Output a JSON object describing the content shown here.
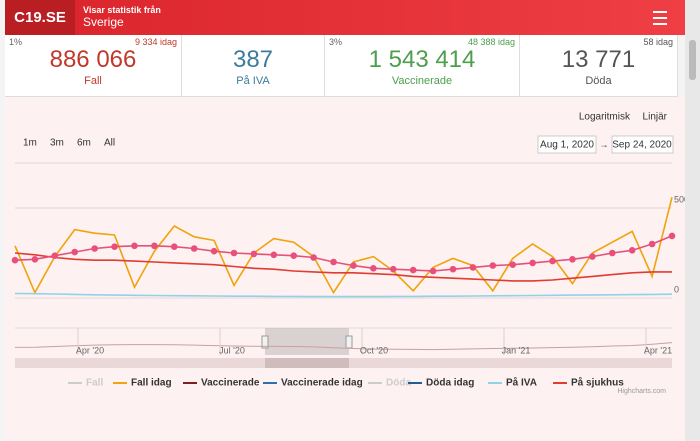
{
  "header": {
    "logo": "C19.SE",
    "subtitle": "Visar statistik från",
    "region": "Sverige"
  },
  "cards": [
    {
      "percent": "1%",
      "today": "9 334 idag",
      "value": "886 066",
      "label": "Fall",
      "color": "#c0392b"
    },
    {
      "value": "387",
      "label": "På IVA",
      "color": "#3b7c9c"
    },
    {
      "percent": "3%",
      "today": "48 388 idag",
      "value": "1 543 414",
      "label": "Vaccinerade",
      "color": "#4d9e4d"
    },
    {
      "today": "58 idag",
      "value": "13 771",
      "label": "Döda",
      "color": "#555555"
    }
  ],
  "controls": {
    "scale_buttons": [
      "Logaritmisk",
      "Linjär"
    ],
    "range_buttons": [
      "1m",
      "3m",
      "6m",
      "All"
    ],
    "date_from": "Aug 1, 2020",
    "date_separator": "→",
    "date_to": "Sep 24, 2020"
  },
  "chart_data": {
    "type": "line",
    "ylim": [
      0,
      750
    ],
    "yticks": [
      0,
      500
    ],
    "grid": true,
    "series": [
      {
        "name": "Fall",
        "color": "#cccccc",
        "visible": false
      },
      {
        "name": "Fall idag",
        "color": "#f0a30a",
        "values": [
          290,
          30,
          230,
          380,
          360,
          350,
          60,
          260,
          400,
          340,
          320,
          70,
          250,
          330,
          310,
          230,
          30,
          200,
          230,
          150,
          40,
          170,
          220,
          180,
          40,
          220,
          300,
          230,
          80,
          250,
          310,
          370,
          120,
          560
        ]
      },
      {
        "name": "Vaccinerade",
        "color": "#7a2020"
      },
      {
        "name": "Vaccinerade idag",
        "color": "#2f6fb0"
      },
      {
        "name": "Döda",
        "color": "#cccccc",
        "visible": false
      },
      {
        "name": "Döda idag",
        "color": "#1f5f8f"
      },
      {
        "name": "På IVA",
        "color": "#8fd3e8",
        "values": [
          25,
          24,
          22,
          20,
          18,
          16,
          15,
          14,
          13,
          12,
          11,
          10,
          10,
          9,
          9,
          8,
          8,
          8,
          8,
          9,
          9,
          10,
          10,
          11,
          12,
          13,
          14,
          15,
          16,
          17,
          18,
          19,
          20,
          21
        ]
      },
      {
        "name": "På sjukhus",
        "color": "#e03c31",
        "values": [
          250,
          240,
          225,
          215,
          210,
          210,
          205,
          200,
          195,
          190,
          185,
          175,
          165,
          160,
          150,
          145,
          140,
          140,
          135,
          130,
          120,
          115,
          110,
          105,
          100,
          95,
          95,
          100,
          110,
          120,
          130,
          140,
          145,
          145
        ]
      },
      {
        "color": "#e8507a",
        "marker": "circle",
        "values": [
          210,
          215,
          235,
          255,
          275,
          285,
          290,
          290,
          285,
          275,
          260,
          250,
          245,
          240,
          235,
          225,
          200,
          180,
          165,
          160,
          155,
          150,
          160,
          170,
          180,
          185,
          195,
          205,
          215,
          230,
          250,
          265,
          300,
          345
        ]
      }
    ],
    "navigator_labels": [
      "Apr '20",
      "Jul '20",
      "Oct '20",
      "Jan '21",
      "Apr '21"
    ],
    "credit": "Highcharts.com"
  }
}
